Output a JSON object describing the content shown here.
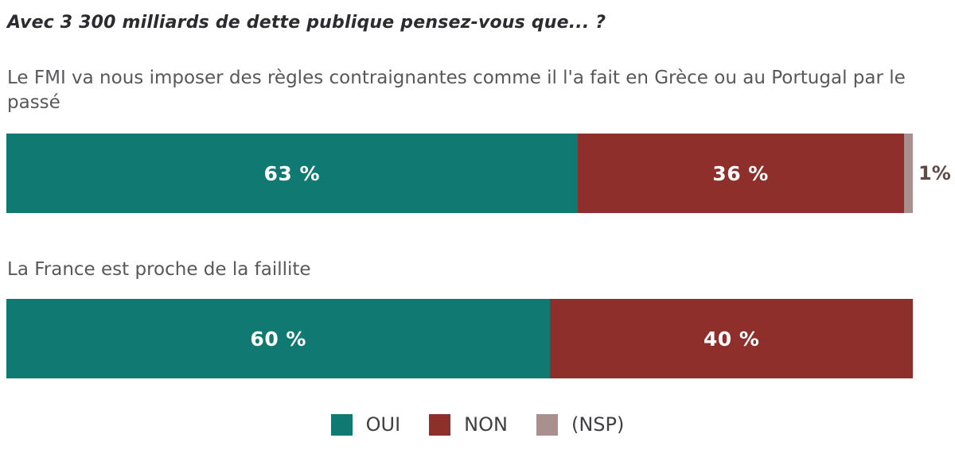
{
  "title": "Avec 3 300 milliards de dette publique pensez-vous que... ?",
  "colors": {
    "title_text": "#2b2b30",
    "question_text": "#58585c",
    "bar_value_text": "#ffffff",
    "nsp_label_text": "#5f4b46",
    "legend_text": "#3f3f44",
    "background": "#ffffff"
  },
  "chart_data": {
    "type": "bar",
    "variant": "horizontal-stacked-100",
    "title": "Avec 3 300 milliards de dette publique pensez-vous que... ?",
    "categories": [
      "Le FMI va nous imposer des règles contraignantes comme il l'a fait en Grèce ou au Portugal par le passé",
      "La France est proche de la faillite"
    ],
    "series": [
      {
        "name": "OUI",
        "color": "#107a72",
        "values": [
          63,
          60
        ]
      },
      {
        "name": "NON",
        "color": "#8f2f2b",
        "values": [
          36,
          40
        ]
      },
      {
        "name": "(NSP)",
        "color": "#a98f8d",
        "values": [
          1,
          0
        ]
      }
    ],
    "xlim": [
      0,
      100
    ],
    "unit": "%",
    "grid": false,
    "legend_position": "bottom"
  },
  "rows": [
    {
      "question": "Le FMI va nous imposer des règles contraignantes comme il l'a fait en Grèce ou au Portugal par le passé",
      "oui_label": "63 %",
      "non_label": "36 %",
      "outside_label": "1%"
    },
    {
      "question": "La France est proche de la faillite",
      "oui_label": "60 %",
      "non_label": "40 %",
      "outside_label": ""
    }
  ]
}
